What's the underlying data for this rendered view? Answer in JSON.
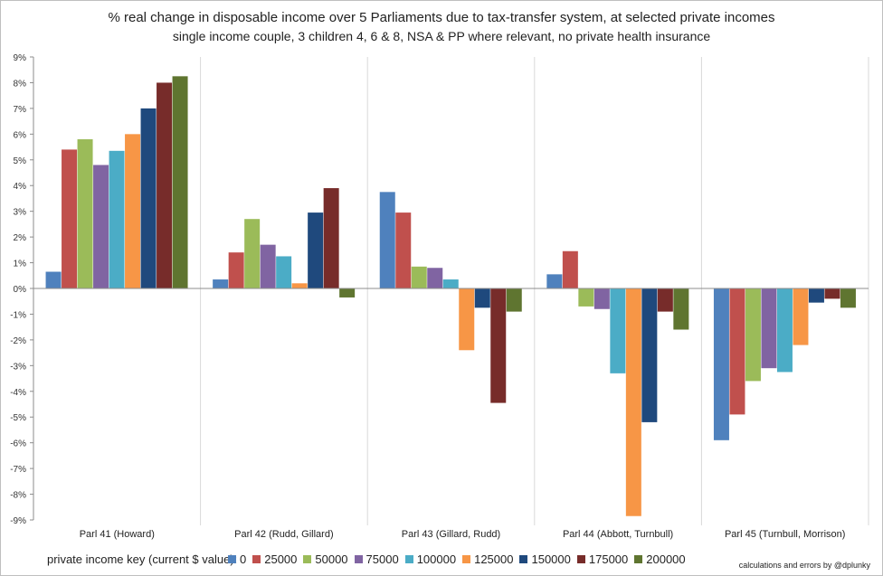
{
  "chart_data": {
    "type": "bar",
    "title": "% real change in disposable income over 5 Parliaments due to tax-transfer system, at selected private incomes",
    "subtitle": "single income couple, 3 children 4, 6 & 8, NSA & PP where relevant, no private health insurance",
    "categories": [
      "Parl 41 (Howard)",
      "Parl 42 (Rudd, Gillard)",
      "Parl 43 (Gillard, Rudd)",
      "Parl 44 (Abbott, Turnbull)",
      "Parl 45 (Turnbull, Morrison)"
    ],
    "ylim": [
      -9,
      9
    ],
    "yticks": [
      "9%",
      "8%",
      "7%",
      "6%",
      "5%",
      "4%",
      "3%",
      "2%",
      "1%",
      "0%",
      "-1%",
      "-2%",
      "-3%",
      "-4%",
      "-5%",
      "-6%",
      "-7%",
      "-8%",
      "-9%"
    ],
    "grid": "vertical category separators",
    "legend_position": "bottom",
    "legend_title": "private income key (current $ value):",
    "series": [
      {
        "name": "0",
        "color": "#4f81bd",
        "values": [
          0.65,
          0.35,
          3.75,
          0.55,
          -5.9
        ]
      },
      {
        "name": "25000",
        "color": "#c0504d",
        "values": [
          5.4,
          1.4,
          2.95,
          1.45,
          -4.9
        ]
      },
      {
        "name": "50000",
        "color": "#9bbb59",
        "values": [
          5.8,
          2.7,
          0.85,
          -0.7,
          -3.6
        ]
      },
      {
        "name": "75000",
        "color": "#8064a2",
        "values": [
          4.8,
          1.7,
          0.8,
          -0.8,
          -3.1
        ]
      },
      {
        "name": "100000",
        "color": "#4bacc6",
        "values": [
          5.35,
          1.25,
          0.35,
          -3.3,
          -3.25
        ]
      },
      {
        "name": "125000",
        "color": "#f79646",
        "values": [
          6.0,
          0.2,
          -2.4,
          -8.85,
          -2.2
        ]
      },
      {
        "name": "150000",
        "color": "#1f497d",
        "values": [
          7.0,
          2.95,
          -0.75,
          -5.2,
          -0.55
        ]
      },
      {
        "name": "175000",
        "color": "#772c2a",
        "values": [
          8.0,
          3.9,
          -4.45,
          -0.9,
          -0.4
        ]
      },
      {
        "name": "200000",
        "color": "#5f7530",
        "values": [
          8.25,
          -0.35,
          -0.9,
          -1.6,
          -0.75
        ]
      }
    ]
  },
  "footer": {
    "credit": "calculations and errors by @dplunky"
  }
}
